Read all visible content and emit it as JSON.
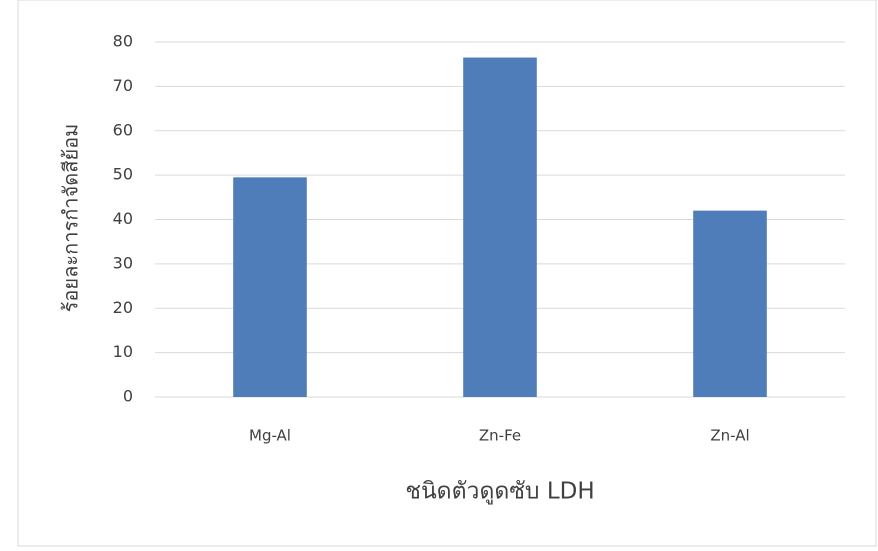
{
  "chart_data": {
    "type": "bar",
    "x_label": "ชนิดตัวดูดซับ LDH",
    "y_label": "ร้อยละการกำจัดสีย้อม",
    "categories": [
      "Mg-Al",
      "Zn-Fe",
      "Zn-Al"
    ],
    "values": [
      49.5,
      76.5,
      42
    ],
    "color": "#4f7dba",
    "ylim": [
      0,
      80
    ],
    "yticks": [
      0,
      10,
      20,
      30,
      40,
      50,
      60,
      70,
      80
    ],
    "grid": true
  }
}
